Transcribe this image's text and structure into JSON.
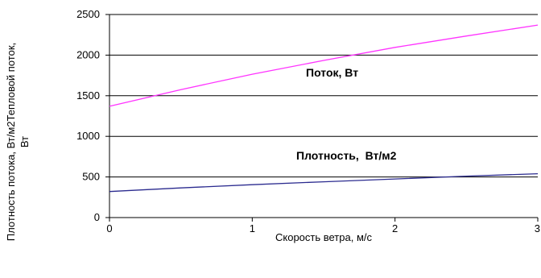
{
  "chart_data": {
    "type": "line",
    "xlabel": "Скорость ветра, м/с",
    "ylabel_line1": "Плотность потока, Вт/м2Тепловой поток,",
    "ylabel_line2": "Вт",
    "xlim": [
      0,
      3
    ],
    "ylim": [
      0,
      2500
    ],
    "x_ticks": [
      "0",
      "1",
      "2",
      "3"
    ],
    "y_ticks": [
      "0",
      "500",
      "1000",
      "1500",
      "2000",
      "2500"
    ],
    "grid": "horizontal",
    "series": [
      {
        "name": "Поток, Вт",
        "color": "#ff33ff",
        "x": [
          0,
          0.5,
          1,
          1.5,
          2,
          2.5,
          3
        ],
        "values": [
          1370,
          1575,
          1765,
          1935,
          2095,
          2235,
          2370
        ]
      },
      {
        "name": "Плотность, Вт/м2",
        "color": "#2b2b8f",
        "x": [
          0,
          0.5,
          1,
          1.5,
          2,
          2.5,
          3
        ],
        "values": [
          320,
          365,
          405,
          440,
          475,
          510,
          540
        ]
      }
    ],
    "annotations": {
      "flow": "Поток, Вт",
      "density": "Плотность,  Вт/м2"
    }
  }
}
